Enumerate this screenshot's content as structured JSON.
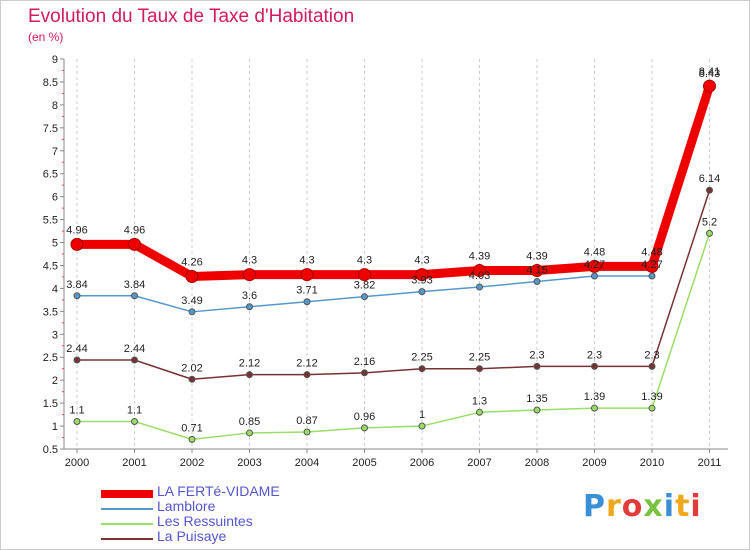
{
  "chart_data": {
    "type": "line",
    "title": "Evolution du Taux de Taxe d'Habitation",
    "subtitle": "(en %)",
    "x": [
      "2000",
      "2001",
      "2002",
      "2003",
      "2004",
      "2005",
      "2006",
      "2007",
      "2008",
      "2009",
      "2010",
      "2011"
    ],
    "y_ticks": [
      "0.5",
      "1",
      "1.5",
      "2",
      "2.5",
      "3",
      "3.5",
      "4",
      "4.5",
      "5",
      "5.5",
      "6",
      "6.5",
      "7",
      "7.5",
      "8",
      "8.5",
      "9"
    ],
    "ylim": [
      0.5,
      9
    ],
    "grid": "vertical",
    "legend_position": "bottom-left",
    "series": [
      {
        "name": "LA FERTé-VIDAME",
        "color": "#ee0000",
        "values": [
          4.96,
          4.96,
          4.26,
          4.3,
          4.3,
          4.3,
          4.3,
          4.39,
          4.39,
          4.48,
          4.48,
          8.41
        ],
        "labels": [
          "4.96",
          "4.96",
          "4.26",
          "4.3",
          "4.3",
          "4.3",
          "4.3",
          "4.39",
          "4.39",
          "4.48",
          "4.48",
          "8.41"
        ]
      },
      {
        "name": "Lamblore",
        "color": "#5599cc",
        "values": [
          3.84,
          3.84,
          3.49,
          3.6,
          3.71,
          3.82,
          3.93,
          4.03,
          4.15,
          4.27,
          4.27,
          8.43
        ],
        "labels": [
          "3.84",
          "3.84",
          "3.49",
          "3.6",
          "3.71",
          "3.82",
          "3.93",
          "4.03",
          "4.15",
          "4.27",
          "4.27",
          "8.43"
        ]
      },
      {
        "name": "Les Ressuintes",
        "color": "#99dd66",
        "values": [
          1.1,
          1.1,
          0.71,
          0.85,
          0.87,
          0.96,
          1,
          1.3,
          1.35,
          1.39,
          1.39,
          5.2
        ],
        "labels": [
          "1.1",
          "1.1",
          "0.71",
          "0.85",
          "0.87",
          "0.96",
          "1",
          "1.3",
          "1.35",
          "1.39",
          "1.39",
          "5.2"
        ]
      },
      {
        "name": "La Puisaye",
        "color": "#773333",
        "values": [
          2.44,
          2.44,
          2.02,
          2.12,
          2.12,
          2.16,
          2.25,
          2.25,
          2.3,
          2.3,
          2.3,
          6.14
        ],
        "labels": [
          "2.44",
          "2.44",
          "2.02",
          "2.12",
          "2.12",
          "2.16",
          "2.25",
          "2.25",
          "2.3",
          "2.3",
          "2.3",
          "6.14"
        ]
      }
    ]
  },
  "logo": {
    "letters": [
      {
        "ch": "P",
        "color": "#3b8fd6"
      },
      {
        "ch": "r",
        "color": "#f0a81c"
      },
      {
        "ch": "o",
        "color": "#e23b3b"
      },
      {
        "ch": "x",
        "color": "#7cc242"
      },
      {
        "ch": "i",
        "color": "#3b8fd6"
      },
      {
        "ch": "t",
        "color": "#f0a81c"
      },
      {
        "ch": "i",
        "color": "#e23b3b"
      }
    ]
  }
}
